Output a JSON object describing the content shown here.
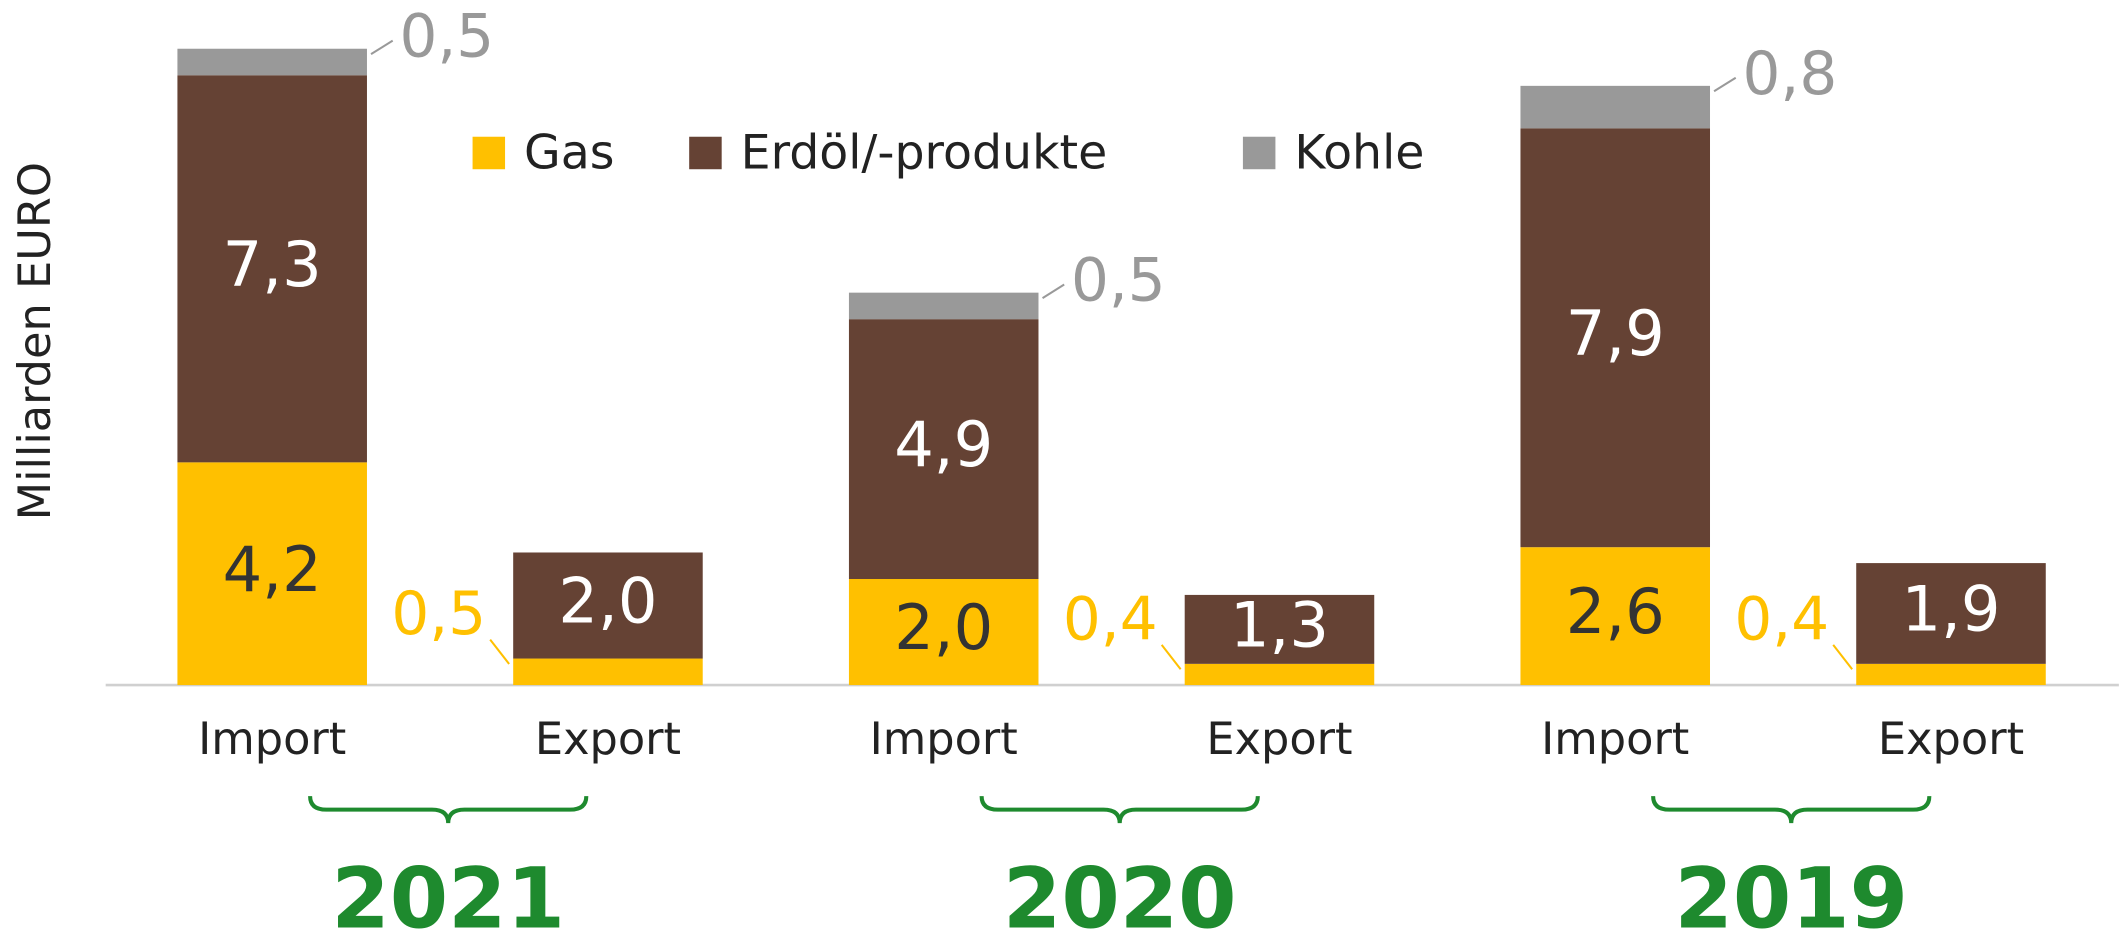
{
  "chart_data": {
    "type": "bar",
    "stacked": true,
    "y_label": "Milliarden EURO",
    "groups": [
      "2021",
      "2020",
      "2019"
    ],
    "categories": [
      "Import",
      "Export",
      "Import",
      "Export",
      "Import",
      "Export"
    ],
    "ylim": [
      0,
      12
    ],
    "series": [
      {
        "name": "Gas",
        "color": "#FFC000",
        "values": [
          4.2,
          0.5,
          2.0,
          0.4,
          2.6,
          0.4
        ],
        "value_labels": [
          "4,2",
          "0,5",
          "2,0",
          "0,4",
          "2,6",
          "0,4"
        ]
      },
      {
        "name": "Erdöl/-produkte",
        "color": "#654234",
        "values": [
          7.3,
          2.0,
          4.9,
          1.3,
          7.9,
          1.9
        ],
        "value_labels": [
          "7,3",
          "2,0",
          "4,9",
          "1,3",
          "7,9",
          "1,9"
        ]
      },
      {
        "name": "Kohle",
        "color": "#999999",
        "values": [
          0.5,
          null,
          0.5,
          null,
          0.8,
          null
        ],
        "value_labels": [
          "0,5",
          null,
          "0,5",
          null,
          "0,8",
          null
        ]
      }
    ],
    "legend": "top"
  }
}
